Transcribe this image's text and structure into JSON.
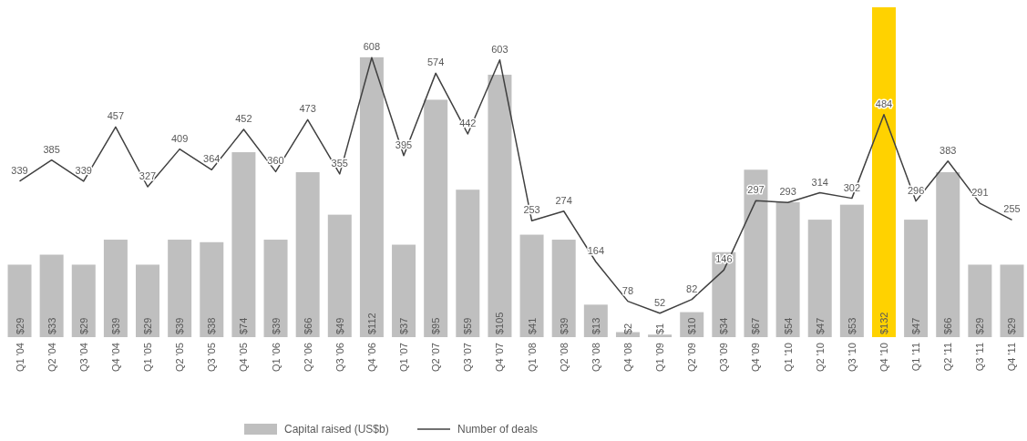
{
  "chart_data": {
    "type": "bar",
    "categories": [
      "Q1 '04",
      "Q2 '04",
      "Q3 '04",
      "Q4 '04",
      "Q1 '05",
      "Q2 '05",
      "Q3 '05",
      "Q4 '05",
      "Q1 '06",
      "Q2 '06",
      "Q3 '06",
      "Q4 '06",
      "Q1 '07",
      "Q2 '07",
      "Q3 '07",
      "Q4 '07",
      "Q1 '08",
      "Q2 '08",
      "Q3 '08",
      "Q4 '08",
      "Q1 '09",
      "Q2 '09",
      "Q3 '09",
      "Q4 '09",
      "Q1 '10",
      "Q2 '10",
      "Q3 '10",
      "Q4 '10",
      "Q1 '11",
      "Q2 '11",
      "Q3 '11",
      "Q4 '11"
    ],
    "series": [
      {
        "name": "Capital raised (US$b)",
        "color": "#bfbfbf",
        "colors": [
          "#bfbfbf",
          "#bfbfbf",
          "#bfbfbf",
          "#bfbfbf",
          "#bfbfbf",
          "#bfbfbf",
          "#bfbfbf",
          "#bfbfbf",
          "#bfbfbf",
          "#bfbfbf",
          "#bfbfbf",
          "#bfbfbf",
          "#bfbfbf",
          "#bfbfbf",
          "#bfbfbf",
          "#bfbfbf",
          "#bfbfbf",
          "#bfbfbf",
          "#bfbfbf",
          "#bfbfbf",
          "#bfbfbf",
          "#bfbfbf",
          "#bfbfbf",
          "#bfbfbf",
          "#bfbfbf",
          "#bfbfbf",
          "#bfbfbf",
          "#ffd200",
          "#bfbfbf",
          "#bfbfbf",
          "#bfbfbf",
          "#bfbfbf"
        ],
        "values": [
          29,
          33,
          29,
          39,
          29,
          39,
          38,
          74,
          39,
          66,
          49,
          112,
          37,
          95,
          59,
          105,
          41,
          39,
          13,
          2,
          1,
          10,
          34,
          67,
          54,
          47,
          53,
          132,
          47,
          66,
          29,
          29
        ],
        "value_labels": [
          "$29",
          "$33",
          "$29",
          "$39",
          "$29",
          "$39",
          "$38",
          "$74",
          "$39",
          "$66",
          "$49",
          "$112",
          "$37",
          "$95",
          "$59",
          "$105",
          "$41",
          "$39",
          "$13",
          "$2",
          "$1",
          "$10",
          "$34",
          "$67",
          "$54",
          "$47",
          "$53",
          "$132",
          "$47",
          "$66",
          "$29",
          "$29"
        ]
      },
      {
        "name": "Number of deals",
        "type": "line",
        "axis": "y2",
        "color": "#404040",
        "values": [
          339,
          385,
          339,
          457,
          327,
          409,
          364,
          452,
          360,
          473,
          355,
          608,
          395,
          574,
          442,
          603,
          253,
          274,
          164,
          78,
          52,
          82,
          146,
          297,
          293,
          314,
          302,
          484,
          296,
          383,
          291,
          255
        ]
      }
    ],
    "data_labels": true,
    "legend": "bottom"
  }
}
